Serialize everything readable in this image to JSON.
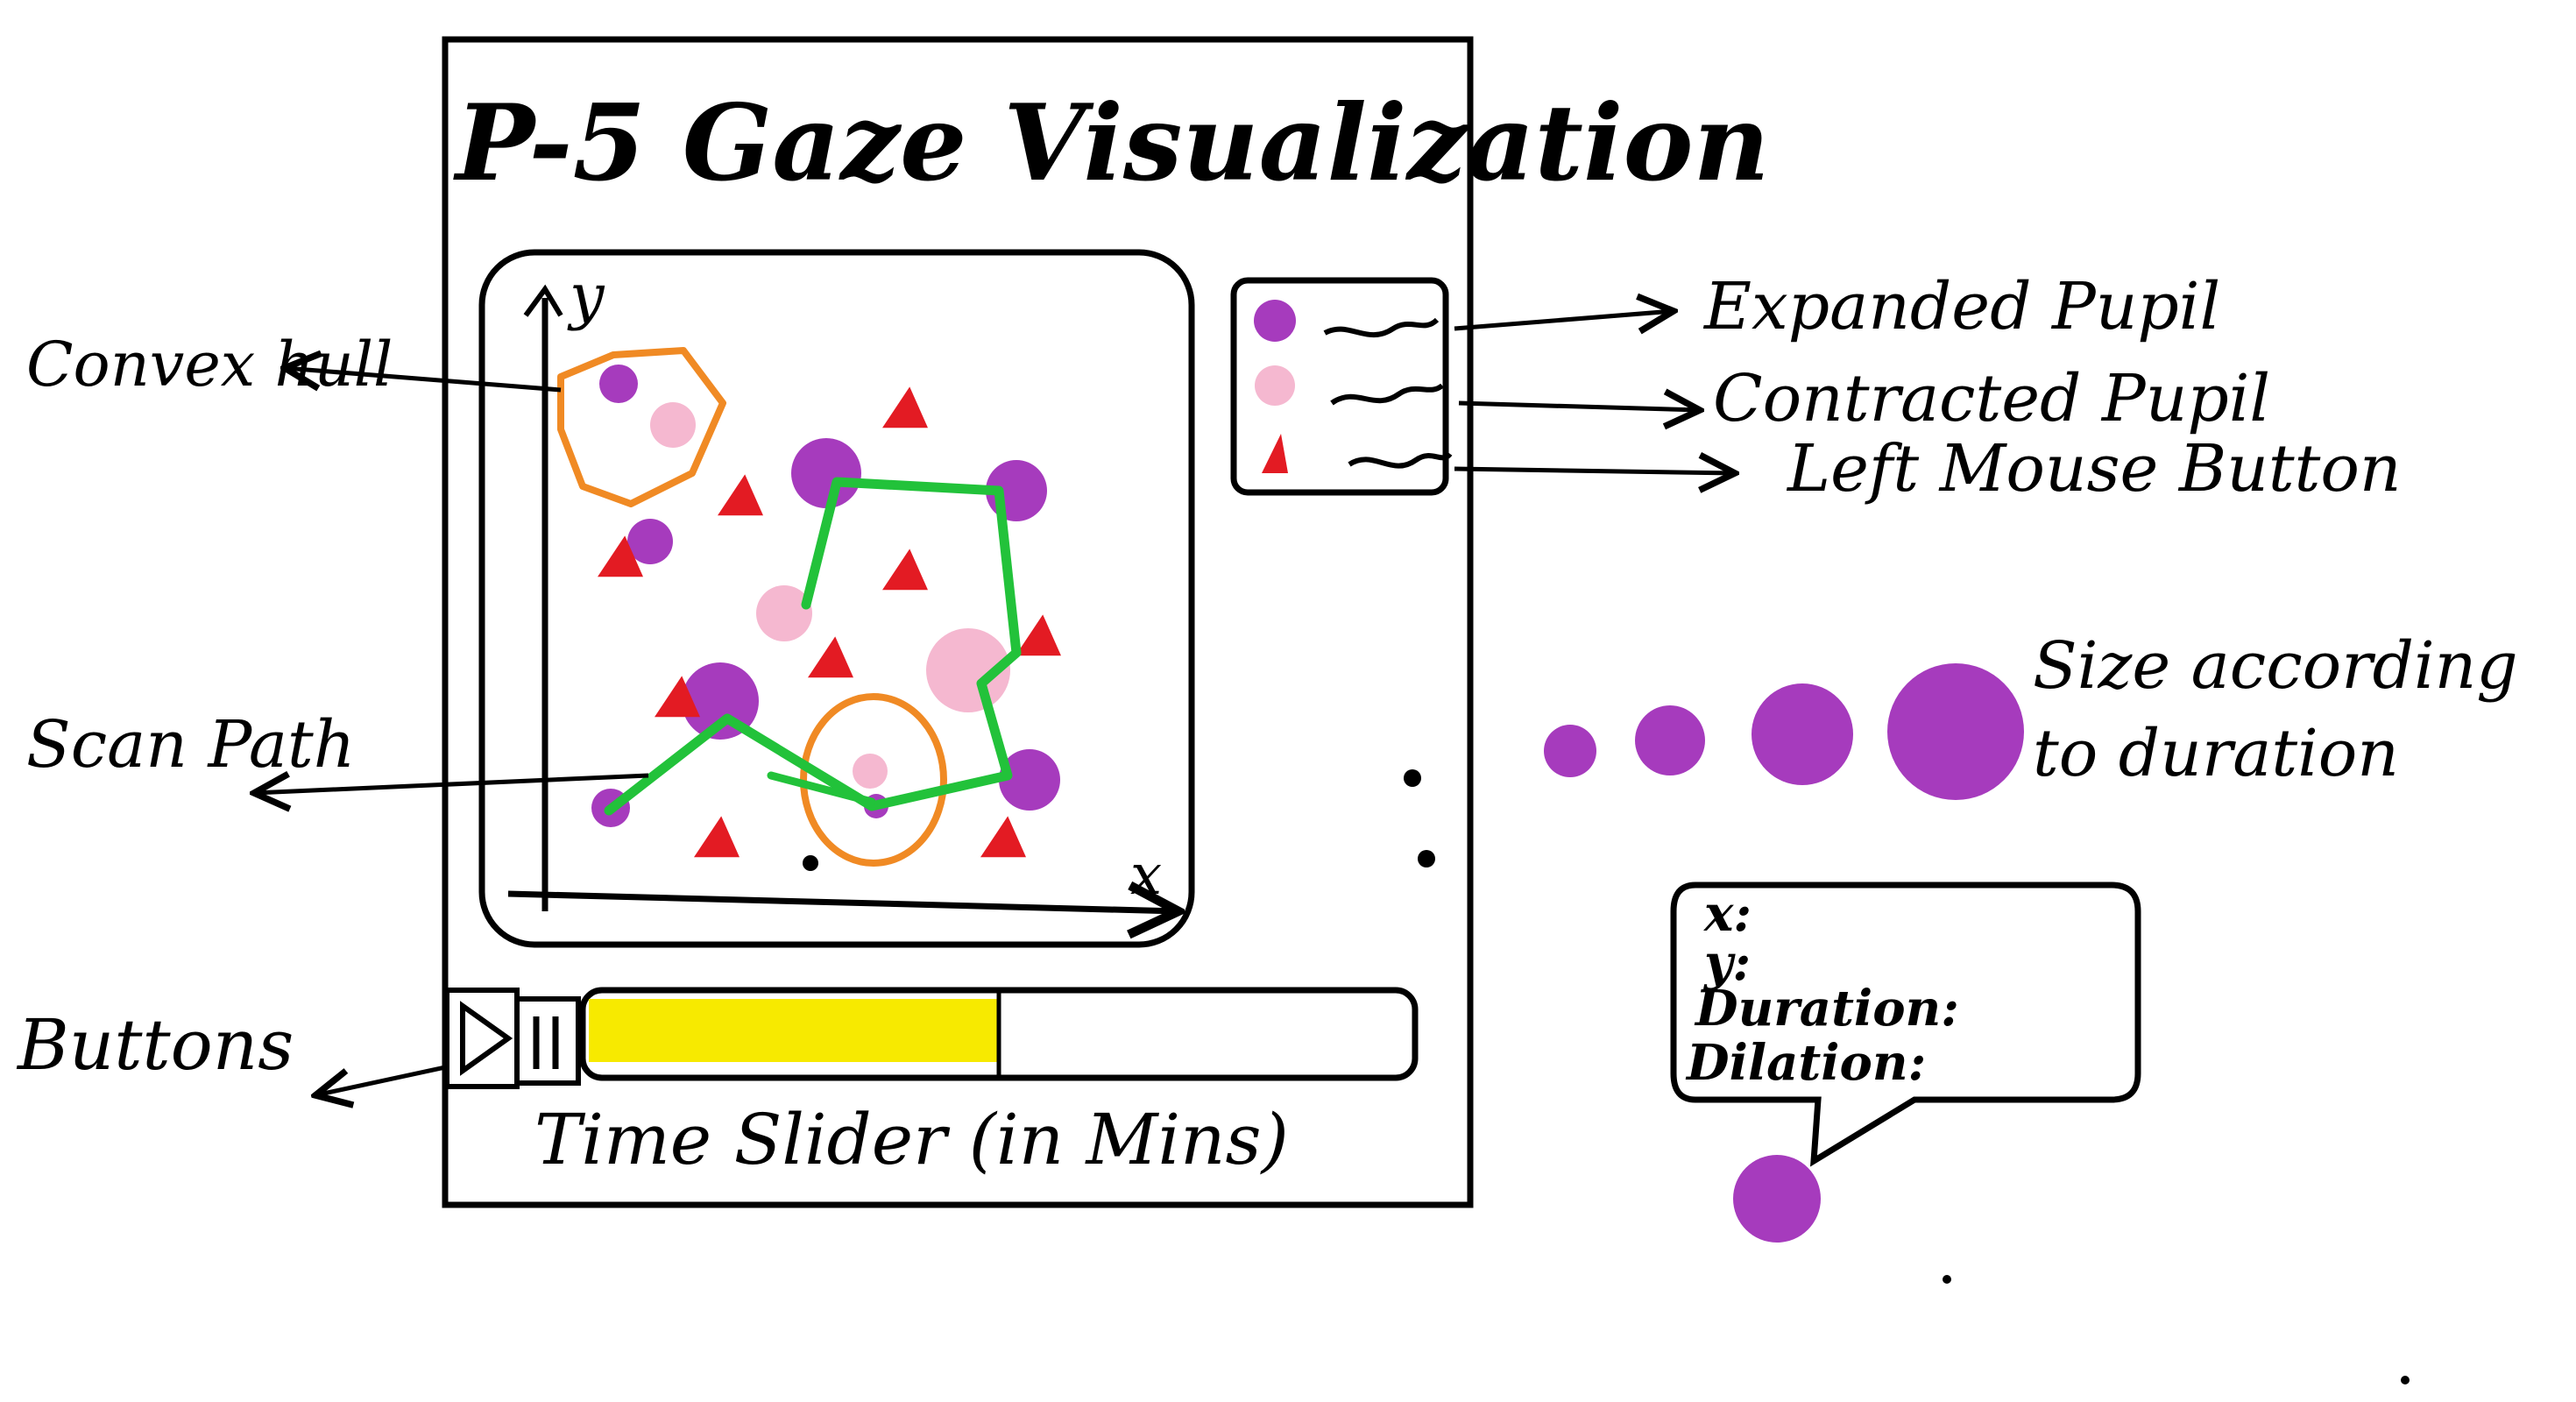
{
  "title": "P-5 Gaze Visualization",
  "axes": {
    "x_label": "x",
    "y_label": "y"
  },
  "legend": [
    {
      "label": "Expanded Pupil",
      "marker": "purple-circle",
      "color": "#a63bbd"
    },
    {
      "label": "Contracted Pupil",
      "marker": "pink-circle",
      "color": "#f5b8d0"
    },
    {
      "label": "Left Mouse Button",
      "marker": "red-triangle",
      "color": "#e31b23"
    }
  ],
  "annotations": {
    "convex_hull": "Convex hull",
    "scan_path": "Scan Path",
    "buttons": "Buttons",
    "size_note": "Size according to duration"
  },
  "controls": {
    "play_icon": "play-icon",
    "pause_icon": "pause-icon",
    "progress": 0.5
  },
  "time_slider_label": "Time Slider (in Mins)",
  "tooltip": {
    "x_label": "x:",
    "y_label": "y:",
    "duration_label": "Duration:",
    "dilation_label": "Dilation:"
  },
  "colors": {
    "expanded": "#a63bbd",
    "contracted": "#f5b8d0",
    "mouse": "#e31b23",
    "scan_path": "#22c23a",
    "hull": "#f08a24",
    "progress": "#f7ea00"
  }
}
